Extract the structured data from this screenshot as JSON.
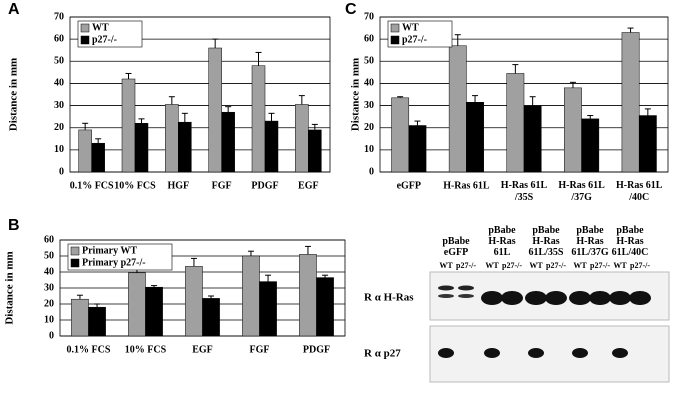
{
  "chart_data": [
    {
      "type": "bar",
      "panel": "A",
      "y_label": "Distance in mm",
      "legend": "upper left",
      "grid": true,
      "categories": [
        "0.1% FCS",
        "10% FCS",
        "HGF",
        "FGF",
        "PDGF",
        "EGF"
      ],
      "series": [
        {
          "name": "WT",
          "color": "#a0a0a0",
          "values": [
            19,
            42,
            30.5,
            56,
            48,
            30.5
          ],
          "errors": [
            3,
            2.5,
            3.5,
            4,
            6,
            4
          ]
        },
        {
          "name": "p27-/-",
          "color": "#000000",
          "values": [
            13,
            22,
            22.5,
            27,
            23,
            19
          ],
          "errors": [
            2,
            2,
            4,
            2.5,
            3.5,
            2.5
          ]
        }
      ],
      "ylim": [
        0,
        70
      ],
      "yticks": [
        0,
        10,
        20,
        30,
        40,
        50,
        60,
        70
      ]
    },
    {
      "type": "bar",
      "panel": "B",
      "y_label": "Distance in mm",
      "legend": "upper left",
      "grid": true,
      "categories": [
        "0.1% FCS",
        "10% FCS",
        "EGF",
        "FGF",
        "PDGF"
      ],
      "series": [
        {
          "name": "Primary WT",
          "color": "#a0a0a0",
          "values": [
            23,
            39.5,
            43.5,
            50,
            51
          ],
          "errors": [
            2.5,
            3,
            5,
            3,
            5
          ]
        },
        {
          "name": "Primary p27-/-",
          "color": "#000000",
          "values": [
            18,
            30.5,
            23.5,
            34,
            36.5
          ],
          "errors": [
            2,
            1,
            1.5,
            4,
            1.5
          ]
        }
      ],
      "ylim": [
        0,
        60
      ],
      "yticks": [
        0,
        10,
        20,
        30,
        40,
        50,
        60
      ]
    },
    {
      "type": "bar",
      "panel": "C",
      "y_label": "Distance in mm",
      "legend": "upper left",
      "grid": true,
      "categories": [
        "eGFP",
        "H-Ras 61L",
        "H-Ras 61L\n/35S",
        "H-Ras 61L\n/37G",
        "H-Ras 61L\n/40C"
      ],
      "series": [
        {
          "name": "WT",
          "color": "#a0a0a0",
          "values": [
            33.5,
            57,
            44.5,
            38,
            63
          ],
          "errors": [
            0.5,
            5,
            4,
            2.5,
            2
          ]
        },
        {
          "name": "p27-/-",
          "color": "#000000",
          "values": [
            21,
            31.5,
            30,
            24,
            25.5
          ],
          "errors": [
            2,
            3,
            4,
            1.5,
            3
          ]
        }
      ],
      "ylim": [
        0,
        70
      ],
      "yticks": [
        0,
        10,
        20,
        30,
        40,
        50,
        60,
        70
      ]
    }
  ],
  "blot": {
    "headers": [
      "pBabe\neGFP",
      "pBabe\nH-Ras\n61L",
      "pBabe\nH-Ras\n61L/35S",
      "pBabe\nH-Ras\n61L/37G",
      "pBabe\nH-Ras\n61L/40C"
    ],
    "lanes": [
      "WT",
      "p27-/-",
      "WT",
      "p27-/-",
      "WT",
      "p27-/-",
      "WT",
      "p27-/-",
      "WT",
      "p27-/-"
    ],
    "rows": [
      "R α H-Ras",
      "R α p27"
    ]
  }
}
